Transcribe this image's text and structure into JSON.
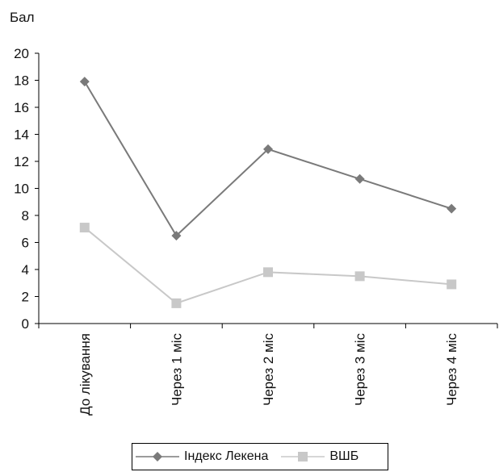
{
  "chart_data": {
    "type": "line",
    "ylabel": "Бал",
    "xlabel": "",
    "ylim": [
      0,
      20
    ],
    "yticks": [
      "0",
      "2",
      "4",
      "6",
      "8",
      "10",
      "12",
      "14",
      "16",
      "18",
      "20"
    ],
    "categories": [
      "До лікування",
      "Через 1 міс",
      "Через 2 міс",
      "Через 3 міс",
      "Через 4 міс"
    ],
    "series": [
      {
        "name": "Індекс Лекена",
        "values": [
          17.9,
          6.5,
          12.9,
          10.7,
          8.5
        ],
        "color": "#7a7a7a",
        "marker": "diamond"
      },
      {
        "name": "ВШБ",
        "values": [
          7.1,
          1.5,
          3.8,
          3.5,
          2.9
        ],
        "color": "#c8c8c8",
        "marker": "square"
      }
    ],
    "grid": false,
    "legend_position": "bottom"
  }
}
